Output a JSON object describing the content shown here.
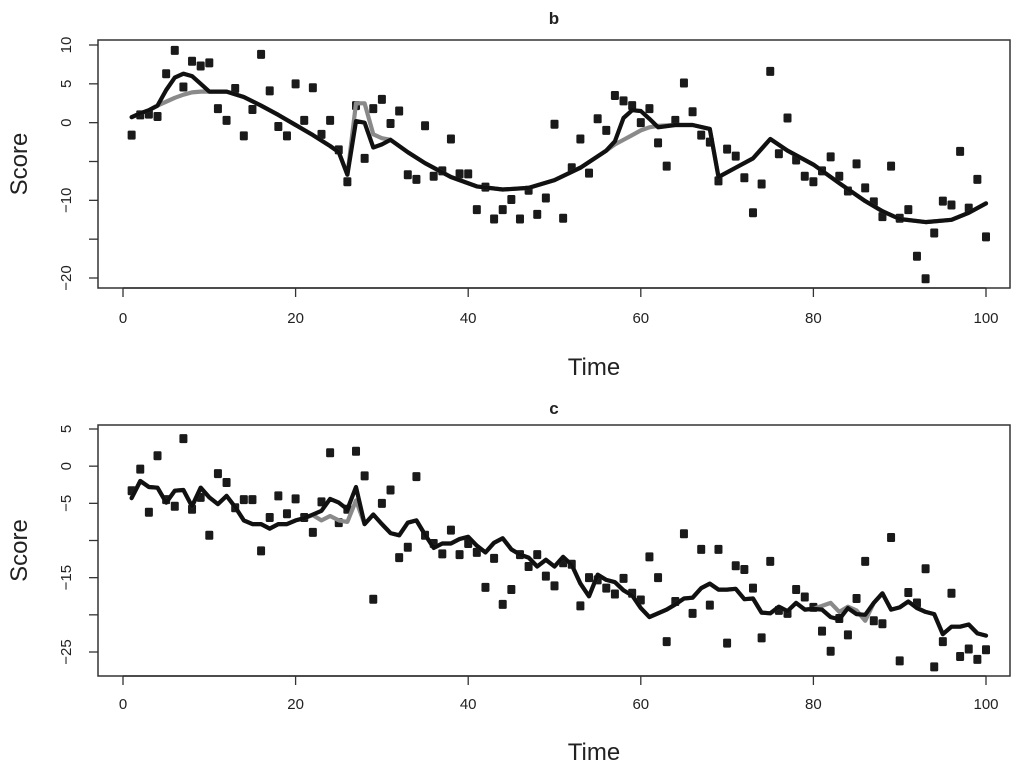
{
  "chart_data": [
    {
      "type": "scatter+line",
      "title": "b",
      "xlabel": "Time",
      "ylabel": "Score",
      "xlim": [
        0,
        100
      ],
      "ylim": [
        -20,
        10
      ],
      "xticks": [
        0,
        20,
        40,
        60,
        80,
        100
      ],
      "xtick_labels": [
        "0",
        "20",
        "40",
        "60",
        "80",
        "100"
      ],
      "yticks": [
        10,
        5,
        0,
        -5,
        -10,
        -15,
        -20
      ],
      "ytick_labels": [
        "10",
        "5",
        "0",
        "",
        "−10",
        "",
        "−20"
      ],
      "grid": false,
      "colors": {
        "points": "#1a1a1a",
        "line_dark": "#111111",
        "line_gray": "#8a8a8a"
      },
      "points": {
        "x_start": 1,
        "y": [
          -1.6,
          1,
          1.1,
          0.8,
          6.3,
          9.3,
          4.6,
          7.9,
          7.3,
          7.7,
          1.8,
          0.3,
          4.4,
          -1.7,
          1.7,
          8.8,
          4.1,
          -0.5,
          -1.7,
          5,
          0.3,
          4.5,
          -1.5,
          0.3,
          -3.5,
          -7.6,
          2.2,
          -4.6,
          1.8,
          3,
          -0.1,
          1.5,
          -6.7,
          -7.3,
          -0.4,
          -6.9,
          -6.2,
          -2.1,
          -6.6,
          -6.6,
          -11.2,
          -8.3,
          -12.4,
          -11.2,
          -9.9,
          -12.4,
          -8.7,
          -11.8,
          -9.7,
          -0.2,
          -12.3,
          -5.8,
          -2.1,
          -6.5,
          0.5,
          -1,
          3.5,
          2.8,
          2.2,
          0,
          1.8,
          -2.6,
          -5.6,
          0.3,
          5.1,
          1.4,
          -1.6,
          -2.5,
          -7.5,
          -3.4,
          -4.3,
          -7.1,
          -11.6,
          -7.9,
          6.6,
          -4,
          0.6,
          -4.8,
          -6.9,
          -7.6,
          -6.2,
          -4.4,
          -6.9,
          -8.8,
          -5.3,
          -8.4,
          -10.2,
          -12.1,
          -5.6,
          -12.3,
          -11.2,
          -17.2,
          -20.1,
          -14.2,
          -10.1,
          -10.6,
          -3.7,
          -11,
          -7.3,
          -14.7
        ]
      },
      "lines": [
        {
          "color": "gray",
          "x": [
            1,
            2,
            3,
            4,
            5,
            6,
            7,
            8,
            9,
            10,
            12,
            14,
            16,
            18,
            20,
            22,
            24,
            25,
            26,
            27,
            28,
            29,
            30,
            31,
            33,
            35,
            38,
            41,
            44,
            47,
            50,
            53,
            56,
            57,
            58,
            59,
            60,
            61,
            62,
            64,
            66,
            68,
            69,
            71,
            73,
            75,
            77,
            80,
            83,
            86,
            88,
            90,
            93,
            96,
            98,
            100
          ],
          "y": [
            0.7,
            1.2,
            1.6,
            2.2,
            2.7,
            3.2,
            3.6,
            3.9,
            4,
            4,
            4,
            3.3,
            2.2,
            1,
            -0.3,
            -1.6,
            -3,
            -3.8,
            -6.7,
            2.5,
            2.5,
            -1.5,
            -2.0,
            -2.2,
            -3.8,
            -5.2,
            -7,
            -8.2,
            -8.6,
            -8.4,
            -7.4,
            -5.8,
            -3.6,
            -2.8,
            -2.2,
            -1.6,
            -1.0,
            -0.6,
            -0.4,
            -0.3,
            -0.3,
            -0.8,
            -7,
            -5.8,
            -4.6,
            -2.1,
            -3.6,
            -5.4,
            -7.8,
            -10.1,
            -11.4,
            -12.4,
            -12.8,
            -12.5,
            -11.6,
            -10.4
          ]
        },
        {
          "color": "dark",
          "x": [
            1,
            2,
            3,
            4,
            5,
            6,
            7,
            8,
            9,
            10,
            12,
            14,
            16,
            18,
            20,
            22,
            24,
            25,
            26,
            27,
            28,
            29,
            30,
            31,
            33,
            35,
            38,
            41,
            44,
            47,
            50,
            53,
            56,
            57,
            58,
            59,
            60,
            61,
            62,
            64,
            66,
            68,
            69,
            71,
            73,
            75,
            77,
            80,
            83,
            86,
            88,
            90,
            93,
            96,
            98,
            100
          ],
          "y": [
            0.7,
            1.2,
            1.6,
            2.2,
            4.2,
            5.8,
            6.3,
            6,
            5,
            4,
            4,
            3.3,
            2.2,
            1,
            -0.3,
            -1.6,
            -3,
            -3.8,
            -6.7,
            0.2,
            0,
            -3.2,
            -2.8,
            -2.2,
            -3.8,
            -5.2,
            -7,
            -8.2,
            -8.6,
            -8.4,
            -7.4,
            -5.8,
            -3.6,
            -2.4,
            0.6,
            1.6,
            1.5,
            0.5,
            -0.6,
            -0.3,
            -0.3,
            -0.8,
            -7,
            -5.8,
            -4.6,
            -2.1,
            -3.6,
            -5.4,
            -7.8,
            -10.1,
            -11.4,
            -12.4,
            -12.8,
            -12.5,
            -11.6,
            -10.4
          ]
        }
      ]
    },
    {
      "type": "scatter+line",
      "title": "c",
      "xlabel": "Time",
      "ylabel": "Score",
      "xlim": [
        0,
        100
      ],
      "ylim": [
        -27,
        5
      ],
      "xticks": [
        0,
        20,
        40,
        60,
        80,
        100
      ],
      "xtick_labels": [
        "0",
        "20",
        "40",
        "60",
        "80",
        "100"
      ],
      "yticks": [
        5,
        0,
        -5,
        -10,
        -15,
        -20,
        -25
      ],
      "ytick_labels": [
        "5",
        "0",
        "−5",
        "",
        "−15",
        "",
        "−25"
      ],
      "grid": false,
      "colors": {
        "points": "#1a1a1a",
        "line_dark": "#111111",
        "line_gray": "#8a8a8a"
      },
      "points": {
        "x_start": 1,
        "y": [
          -3.3,
          -0.4,
          -6.2,
          1.4,
          -4.5,
          -5.4,
          3.7,
          -5.8,
          -4.2,
          -9.3,
          -1,
          -2.2,
          -5.6,
          -4.5,
          -4.5,
          -11.4,
          -6.9,
          -4,
          -6.4,
          -4.4,
          -6.9,
          -8.9,
          -4.8,
          1.8,
          -7.6,
          -5.8,
          2,
          -1.3,
          -17.9,
          -5,
          -3.2,
          -12.3,
          -10.9,
          -1.4,
          -9.3,
          -10.4,
          -11.8,
          -8.6,
          -11.9,
          -10.4,
          -11.6,
          -16.3,
          -12.4,
          -18.6,
          -16.6,
          -11.9,
          -13.5,
          -11.9,
          -14.8,
          -16.1,
          -13,
          -13.2,
          -18.8,
          -15,
          -15.3,
          -16.4,
          -17.2,
          -15.1,
          -17.1,
          -18,
          -12.2,
          -15,
          -23.6,
          -18.2,
          -9.1,
          -19.8,
          -11.2,
          -18.7,
          -11.2,
          -23.8,
          -13.4,
          -13.9,
          -16.4,
          -23.1,
          -12.8,
          -19.4,
          -19.8,
          -16.6,
          -17.6,
          -19,
          -22.2,
          -24.9,
          -20.5,
          -22.7,
          -17.8,
          -12.8,
          -20.8,
          -21.2,
          -9.6,
          -26.2,
          -17,
          -18.4,
          -13.8,
          -27,
          -23.6,
          -17.1,
          -25.6,
          -24.6,
          -26,
          -24.7
        ]
      },
      "lines": [
        {
          "color": "gray",
          "x_start": 1,
          "y": [
            -4.3,
            -2,
            -2.8,
            -2.9,
            -4.9,
            -3.3,
            -3.2,
            -5.4,
            -2.9,
            -4.2,
            -5.1,
            -4,
            -5.5,
            -7.3,
            -7.8,
            -7.8,
            -8.4,
            -7.8,
            -7.8,
            -7.3,
            -7,
            -6.6,
            -7.3,
            -6.7,
            -7.3,
            -7.5,
            -4.6,
            -7.8,
            -6.5,
            -7.8,
            -9,
            -9.3,
            -7.6,
            -7.3,
            -9.2,
            -11,
            -10.4,
            -10.4,
            -9.8,
            -9.5,
            -10.7,
            -11.6,
            -10.3,
            -9.7,
            -11.2,
            -11.9,
            -12.3,
            -13.5,
            -12.6,
            -13.5,
            -12.2,
            -13.3,
            -15.8,
            -17.5,
            -14.6,
            -15.3,
            -15.6,
            -16.7,
            -17.4,
            -19.1,
            -20.3,
            -19.8,
            -19.3,
            -18.6,
            -17.8,
            -17.7,
            -16.4,
            -15.8,
            -16.6,
            -16.6,
            -16.5,
            -17.9,
            -17.8,
            -19.7,
            -19.8,
            -18.9,
            -19.5,
            -18.4,
            -19.3,
            -19.2,
            -18.8,
            -18.4,
            -19.6,
            -18.9,
            -19.4,
            -20.8,
            -18.4,
            -17.1,
            -19.3,
            -19,
            -18.2,
            -19.1,
            -19.6,
            -19.9,
            -22.6,
            -21.6,
            -21.6,
            -21.3,
            -22.5,
            -22.8
          ]
        },
        {
          "color": "dark",
          "x_start": 1,
          "y": [
            -4.3,
            -2,
            -2.8,
            -2.9,
            -4.9,
            -3.3,
            -3.2,
            -5.4,
            -2.9,
            -4.2,
            -5.1,
            -4,
            -5.5,
            -7.3,
            -7.8,
            -7.8,
            -8.4,
            -7.8,
            -7.8,
            -7.3,
            -7,
            -6.5,
            -6,
            -4.4,
            -4.9,
            -5.8,
            -2.8,
            -7.8,
            -6.5,
            -7.8,
            -9,
            -9.3,
            -7.6,
            -7.3,
            -9.2,
            -11,
            -10.4,
            -10.4,
            -9.8,
            -9.5,
            -10.7,
            -11.6,
            -10.3,
            -9.7,
            -11.2,
            -11.9,
            -12.3,
            -13.5,
            -12.6,
            -13.5,
            -12.2,
            -13.3,
            -15.8,
            -17.5,
            -14.6,
            -15.3,
            -15.6,
            -16.7,
            -17.4,
            -19.1,
            -20.3,
            -19.8,
            -19.3,
            -18.6,
            -17.8,
            -17.7,
            -16.4,
            -15.8,
            -16.6,
            -16.6,
            -16.5,
            -17.9,
            -17.8,
            -19.7,
            -19.8,
            -18.9,
            -19.5,
            -18.4,
            -19.3,
            -19.2,
            -19.3,
            -20.3,
            -20.6,
            -19.1,
            -19.9,
            -20,
            -18.4,
            -17.1,
            -19.3,
            -19,
            -18.2,
            -19.1,
            -19.6,
            -19.9,
            -22.6,
            -21.6,
            -21.6,
            -21.3,
            -22.5,
            -22.8
          ]
        }
      ]
    }
  ]
}
